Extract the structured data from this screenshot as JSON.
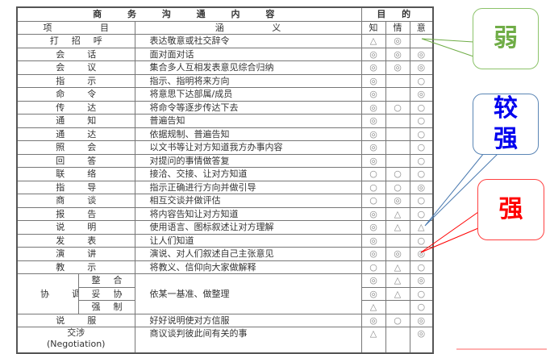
{
  "table": {
    "title": "商 务 沟 通 内 容",
    "purpose_header": "目 的",
    "col_item": "项 目",
    "col_meaning": "涵 义",
    "col_know": "知",
    "col_feel": "情",
    "col_intent": "意",
    "rows": [
      {
        "item": "打招呼",
        "meaning": "表达敬意或社交辞令",
        "know": "△",
        "feel": "◎",
        "intent": ""
      },
      {
        "item": "会话",
        "meaning": "面对面对话",
        "know": "◎",
        "feel": "◎",
        "intent": "◎"
      },
      {
        "item": "会议",
        "meaning": "集合多人互相发表意见综合归纳",
        "know": "◎",
        "feel": "◎",
        "intent": "◎"
      },
      {
        "item": "指示",
        "meaning": "指示、指明将来方向",
        "know": "◎",
        "feel": "",
        "intent": "○"
      },
      {
        "item": "命令",
        "meaning": "将意思下达部属/成员",
        "know": "◎",
        "feel": "",
        "intent": "◎"
      },
      {
        "item": "传达",
        "meaning": "将命令等逐步传达下去",
        "know": "◎",
        "feel": "○",
        "intent": "○"
      },
      {
        "item": "通知",
        "meaning": "普遍告知",
        "know": "◎",
        "feel": "",
        "intent": "○"
      },
      {
        "item": "通达",
        "meaning": "依据规制、普遍告知",
        "know": "◎",
        "feel": "",
        "intent": "○"
      },
      {
        "item": "照会",
        "meaning": "以文书等让对方知道我方办事内容",
        "know": "◎",
        "feel": "",
        "intent": "○"
      },
      {
        "item": "回答",
        "meaning": "对提问的事情做答复",
        "know": "◎",
        "feel": "",
        "intent": "○"
      },
      {
        "item": "联络",
        "meaning": "接洽、交接、让对方知道",
        "know": "○",
        "feel": "○",
        "intent": "○"
      },
      {
        "item": "指导",
        "meaning": "指示正确进行方向并做引导",
        "know": "○",
        "feel": "○",
        "intent": "◎"
      },
      {
        "item": "商谈",
        "meaning": "相互交谈并做评估",
        "know": "○",
        "feel": "◎",
        "intent": "○"
      },
      {
        "item": "报告",
        "meaning": "将内容告知让对方知道",
        "know": "◎",
        "feel": "△",
        "intent": "○"
      },
      {
        "item": "说明",
        "meaning": "使用语言、图标叙述让对方理解",
        "know": "◎",
        "feel": "△",
        "intent": "△"
      },
      {
        "item": "发表",
        "meaning": "让人们知道",
        "know": "◎",
        "feel": "",
        "intent": "○"
      },
      {
        "item": "演讲",
        "meaning": "演说、对人们叙述自己主张意见",
        "know": "◎",
        "feel": "◎",
        "intent": "◎"
      },
      {
        "item": "教示",
        "meaning": "将教义、信仰向大家做解释",
        "know": "○",
        "feel": "△",
        "intent": "○"
      }
    ],
    "coordination": {
      "item": "协调",
      "meaning": "依某一基准、做整理",
      "subs": [
        {
          "item": "整合",
          "know": "◎",
          "feel": "△",
          "intent": "◎"
        },
        {
          "item": "妥协",
          "know": "◎",
          "feel": "△",
          "intent": "○"
        },
        {
          "item": "强制",
          "know": "△",
          "feel": "",
          "intent": "○"
        }
      ]
    },
    "tail_rows": [
      {
        "item": "说服",
        "meaning": "好好说明使对方信服",
        "know": "◎",
        "feel": "○",
        "intent": "◎"
      }
    ],
    "negotiation": {
      "item": "交涉",
      "item_en": "(Negotiation)",
      "meaning": "商议谈判彼此间有关的事",
      "know": "△",
      "feel": "",
      "intent": "◎"
    }
  },
  "callouts": {
    "weak": {
      "label": "弱",
      "color": "#70ad47"
    },
    "stronger": {
      "label": "较强",
      "color": "#0000ee"
    },
    "strong": {
      "label": "强",
      "color": "#ff0000"
    }
  }
}
